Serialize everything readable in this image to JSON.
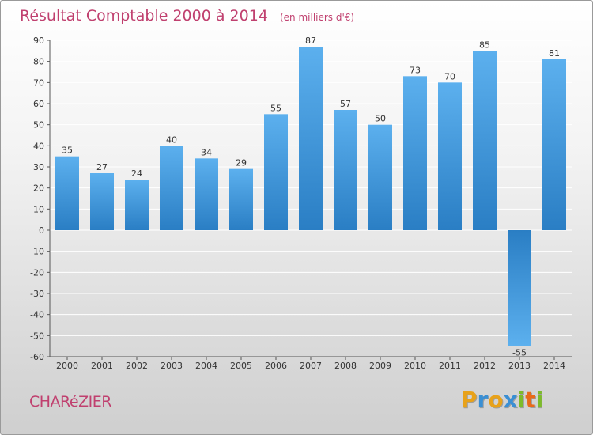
{
  "chart_data": {
    "type": "bar",
    "title": "Résultat Comptable 2000 à 2014",
    "subtitle": "(en milliers d'€)",
    "categories": [
      "2000",
      "2001",
      "2002",
      "2003",
      "2004",
      "2005",
      "2006",
      "2007",
      "2008",
      "2009",
      "2010",
      "2011",
      "2012",
      "2013",
      "2014"
    ],
    "values": [
      35,
      27,
      24,
      40,
      34,
      29,
      55,
      87,
      57,
      50,
      73,
      70,
      85,
      -55,
      81
    ],
    "ylim": [
      -60,
      90
    ],
    "yticks": [
      90,
      80,
      70,
      60,
      50,
      40,
      30,
      20,
      10,
      0,
      -10,
      -20,
      -30,
      -40,
      -50,
      -60
    ],
    "xlabel": "",
    "ylabel": "",
    "grid": true
  },
  "footer": {
    "commune": "CHARéZIER",
    "brand_letters": [
      "P",
      "r",
      "o",
      "x",
      "i",
      "t",
      "i"
    ],
    "brand_colors": [
      "#e8a21a",
      "#3a8fd4",
      "#e8a21a",
      "#3a8fd4",
      "#7dbb2a",
      "#e86a1a",
      "#7dbb2a"
    ]
  },
  "colors": {
    "bar_light": "#5cb0ee",
    "bar_dark": "#2a7ec4",
    "grid": "#ffffff",
    "axis": "#555555",
    "title": "#c0406f"
  }
}
